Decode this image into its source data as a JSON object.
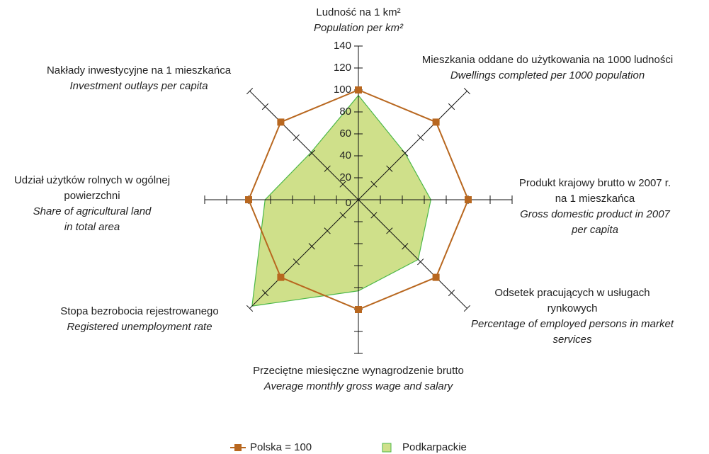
{
  "chart_data": {
    "type": "radar",
    "categories": [
      {
        "pl": [
          "Ludność na 1 km²"
        ],
        "en": [
          "Population per km²"
        ]
      },
      {
        "pl": [
          "Mieszkania oddane do użytkowania na 1000 ludności"
        ],
        "en": [
          "Dwellings completed per 1000 population"
        ]
      },
      {
        "pl": [
          "Produkt krajowy brutto w 2007 r.",
          "na 1 mieszkańca"
        ],
        "en": [
          "Gross domestic product in 2007",
          "per capita"
        ]
      },
      {
        "pl": [
          "Odsetek pracujących w usługach",
          "rynkowych"
        ],
        "en": [
          "Percentage of employed persons in market",
          "services"
        ]
      },
      {
        "pl": [
          "Przeciętne miesięczne wynagrodzenie brutto"
        ],
        "en": [
          "Average monthly gross wage and salary"
        ]
      },
      {
        "pl": [
          "Stopa bezrobocia rejestrowanego"
        ],
        "en": [
          "Registered unemployment rate"
        ]
      },
      {
        "pl": [
          "Udział użytków rolnych w ogólnej",
          "powierzchni"
        ],
        "en": [
          "Share of agricultural land",
          "in total area"
        ]
      },
      {
        "pl": [
          "Nakłady inwestycyjne na 1 mieszkańca"
        ],
        "en": [
          "Investment outlays per capita"
        ]
      }
    ],
    "series": [
      {
        "name": "Polska = 100",
        "color": "#b8671f",
        "style": "line",
        "values": [
          100,
          100,
          100,
          100,
          100,
          100,
          100,
          100
        ]
      },
      {
        "name": "Podkarpackie",
        "color": "#cfe08a",
        "edge": "#4cb848",
        "style": "area",
        "values": [
          95,
          60,
          66,
          77,
          83,
          137,
          85,
          61
        ]
      }
    ],
    "ylim": [
      0,
      140
    ],
    "yticks": [
      0,
      20,
      40,
      60,
      80,
      100,
      120,
      140
    ]
  }
}
